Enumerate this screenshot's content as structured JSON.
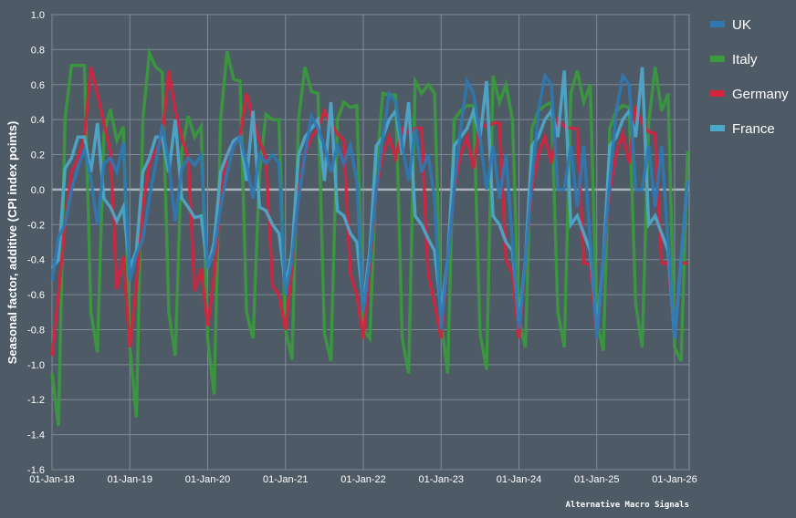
{
  "chart_data": {
    "type": "line",
    "title": "",
    "xlabel": "",
    "ylabel": "Seasonal factor, additive (CPI index points)",
    "ylim": [
      -1.6,
      1.0
    ],
    "yticks": [
      "1.0",
      "0.8",
      "0.6",
      "0.4",
      "0.2",
      "0.0",
      "-0.2",
      "-0.4",
      "-0.6",
      "-0.8",
      "-1.0",
      "-1.2",
      "-1.4",
      "-1.6"
    ],
    "ytick_values": [
      1.0,
      0.8,
      0.6,
      0.4,
      0.2,
      0.0,
      -0.2,
      -0.4,
      -0.6,
      -0.8,
      -1.0,
      -1.2,
      -1.4,
      -1.6
    ],
    "xticks": [
      "01-Jan-18",
      "01-Jan-19",
      "01-Jan-20",
      "01-Jan-21",
      "01-Jan-22",
      "01-Jan-23",
      "01-Jan-24",
      "01-Jan-25",
      "01-Jan-26"
    ],
    "x_start": "2018-01",
    "x_frequency": "monthly",
    "x_range_months": [
      0,
      98
    ],
    "grid": true,
    "legend_position": "right",
    "source": "Alternative Macro Signals",
    "series": [
      {
        "name": "Italy",
        "color": "#3a9a3c",
        "values": [
          -1.05,
          -1.35,
          0.4,
          0.71,
          0.71,
          0.71,
          -0.7,
          -0.93,
          0.32,
          0.46,
          0.28,
          0.36,
          -0.9,
          -1.3,
          0.4,
          0.78,
          0.7,
          0.67,
          -0.7,
          -0.95,
          0.22,
          0.42,
          0.3,
          0.36,
          -0.85,
          -1.17,
          0.4,
          0.79,
          0.63,
          0.62,
          -0.7,
          -0.85,
          0.1,
          0.43,
          0.4,
          0.4,
          -0.8,
          -0.97,
          0.4,
          0.7,
          0.56,
          0.55,
          -0.82,
          -0.98,
          0.4,
          0.5,
          0.47,
          0.48,
          -0.8,
          -0.85,
          0.1,
          0.55,
          0.54,
          0.54,
          -0.85,
          -1.05,
          0.62,
          0.55,
          0.6,
          0.55,
          -0.75,
          -1.05,
          0.4,
          0.45,
          0.48,
          0.48,
          -0.82,
          -1.03,
          0.65,
          0.5,
          0.6,
          0.4,
          -0.75,
          -0.9,
          0.35,
          0.45,
          0.48,
          0.5,
          -0.7,
          -0.9,
          0.55,
          0.68,
          0.5,
          0.6,
          -0.75,
          -0.92,
          0.35,
          0.45,
          0.48,
          0.47,
          -0.65,
          -0.9,
          0.38,
          0.7,
          0.45,
          0.55,
          -0.9,
          -0.98,
          0.22
        ]
      },
      {
        "name": "Germany",
        "color": "#d4243f",
        "values": [
          -0.95,
          -0.6,
          -0.2,
          0.1,
          0.18,
          0.3,
          0.7,
          0.55,
          0.38,
          0.22,
          -0.57,
          -0.38,
          -0.9,
          -0.55,
          -0.1,
          0.15,
          0.22,
          0.3,
          0.68,
          0.45,
          0.3,
          0.18,
          -0.58,
          -0.45,
          -0.78,
          -0.5,
          -0.05,
          0.2,
          0.25,
          0.3,
          0.55,
          0.4,
          0.28,
          0.18,
          -0.55,
          -0.6,
          -0.8,
          -0.45,
          0.0,
          0.2,
          0.3,
          0.35,
          0.45,
          0.38,
          0.32,
          0.28,
          -0.48,
          -0.6,
          -0.85,
          -0.45,
          0.0,
          0.2,
          0.3,
          0.18,
          0.35,
          0.32,
          0.35,
          0.35,
          -0.48,
          -0.65,
          -0.85,
          -0.4,
          0.0,
          0.2,
          0.3,
          0.12,
          0.38,
          0.36,
          0.38,
          0.38,
          -0.4,
          -0.48,
          -0.85,
          -0.4,
          0.0,
          0.2,
          0.3,
          0.15,
          0.4,
          0.36,
          0.35,
          0.35,
          -0.42,
          -0.43,
          -0.85,
          -0.4,
          0.0,
          0.2,
          0.32,
          0.15,
          0.48,
          0.38,
          0.33,
          0.32,
          -0.42,
          -0.42,
          -0.8,
          -0.42,
          -0.42
        ]
      },
      {
        "name": "France",
        "color": "#4ea8cc",
        "values": [
          -0.45,
          -0.4,
          0.12,
          0.18,
          0.3,
          0.3,
          0.1,
          0.38,
          -0.05,
          -0.1,
          -0.18,
          -0.1,
          -0.45,
          -0.35,
          0.1,
          0.18,
          0.3,
          0.3,
          0.1,
          0.4,
          -0.05,
          -0.1,
          -0.16,
          -0.15,
          -0.45,
          -0.3,
          0.1,
          0.2,
          0.28,
          0.3,
          0.05,
          0.45,
          -0.1,
          -0.12,
          -0.2,
          -0.25,
          -0.55,
          -0.35,
          0.2,
          0.3,
          0.35,
          0.4,
          0.05,
          0.5,
          -0.12,
          -0.15,
          -0.25,
          -0.3,
          -0.65,
          -0.35,
          0.25,
          0.3,
          0.4,
          0.45,
          0.2,
          0.5,
          -0.15,
          -0.2,
          -0.28,
          -0.35,
          -0.7,
          -0.4,
          0.25,
          0.3,
          0.35,
          0.45,
          0.3,
          0.62,
          -0.15,
          -0.2,
          -0.3,
          -0.35,
          -0.75,
          -0.4,
          0.25,
          0.3,
          0.4,
          0.45,
          0.3,
          0.68,
          -0.2,
          -0.15,
          -0.25,
          -0.35,
          -0.8,
          -0.4,
          0.25,
          0.3,
          0.4,
          0.45,
          0.3,
          0.7,
          -0.2,
          -0.15,
          -0.25,
          -0.35,
          -0.85,
          -0.4,
          0.05
        ]
      },
      {
        "name": "UK",
        "color": "#2f78b2",
        "values": [
          -0.52,
          -0.27,
          -0.2,
          0.0,
          0.13,
          0.23,
          0.06,
          -0.2,
          0.15,
          0.18,
          0.1,
          0.27,
          -0.52,
          -0.37,
          -0.28,
          -0.05,
          0.15,
          0.37,
          0.15,
          -0.18,
          0.12,
          0.18,
          0.14,
          0.2,
          -0.45,
          -0.35,
          -0.1,
          0.1,
          0.25,
          0.3,
          0.15,
          -0.05,
          0.2,
          0.15,
          0.2,
          0.15,
          -0.6,
          -0.4,
          -0.05,
          0.2,
          0.42,
          0.35,
          0.25,
          0.1,
          0.25,
          0.15,
          0.25,
          0.05,
          -0.7,
          -0.4,
          0.0,
          0.3,
          0.55,
          0.5,
          0.25,
          0.05,
          0.35,
          0.1,
          0.2,
          -0.05,
          -0.8,
          -0.4,
          0.0,
          0.35,
          0.62,
          0.55,
          0.3,
          0.0,
          0.25,
          -0.05,
          0.2,
          -0.3,
          -0.8,
          -0.4,
          0.05,
          0.45,
          0.65,
          0.6,
          0.0,
          0.0,
          0.25,
          -0.1,
          0.25,
          -0.3,
          -0.85,
          -0.4,
          0.05,
          0.45,
          0.65,
          0.6,
          0.0,
          0.0,
          0.25,
          -0.1,
          0.25,
          -0.3,
          -0.85,
          -0.4,
          0.05
        ]
      }
    ],
    "legend": [
      "UK",
      "Italy",
      "Germany",
      "France"
    ]
  }
}
